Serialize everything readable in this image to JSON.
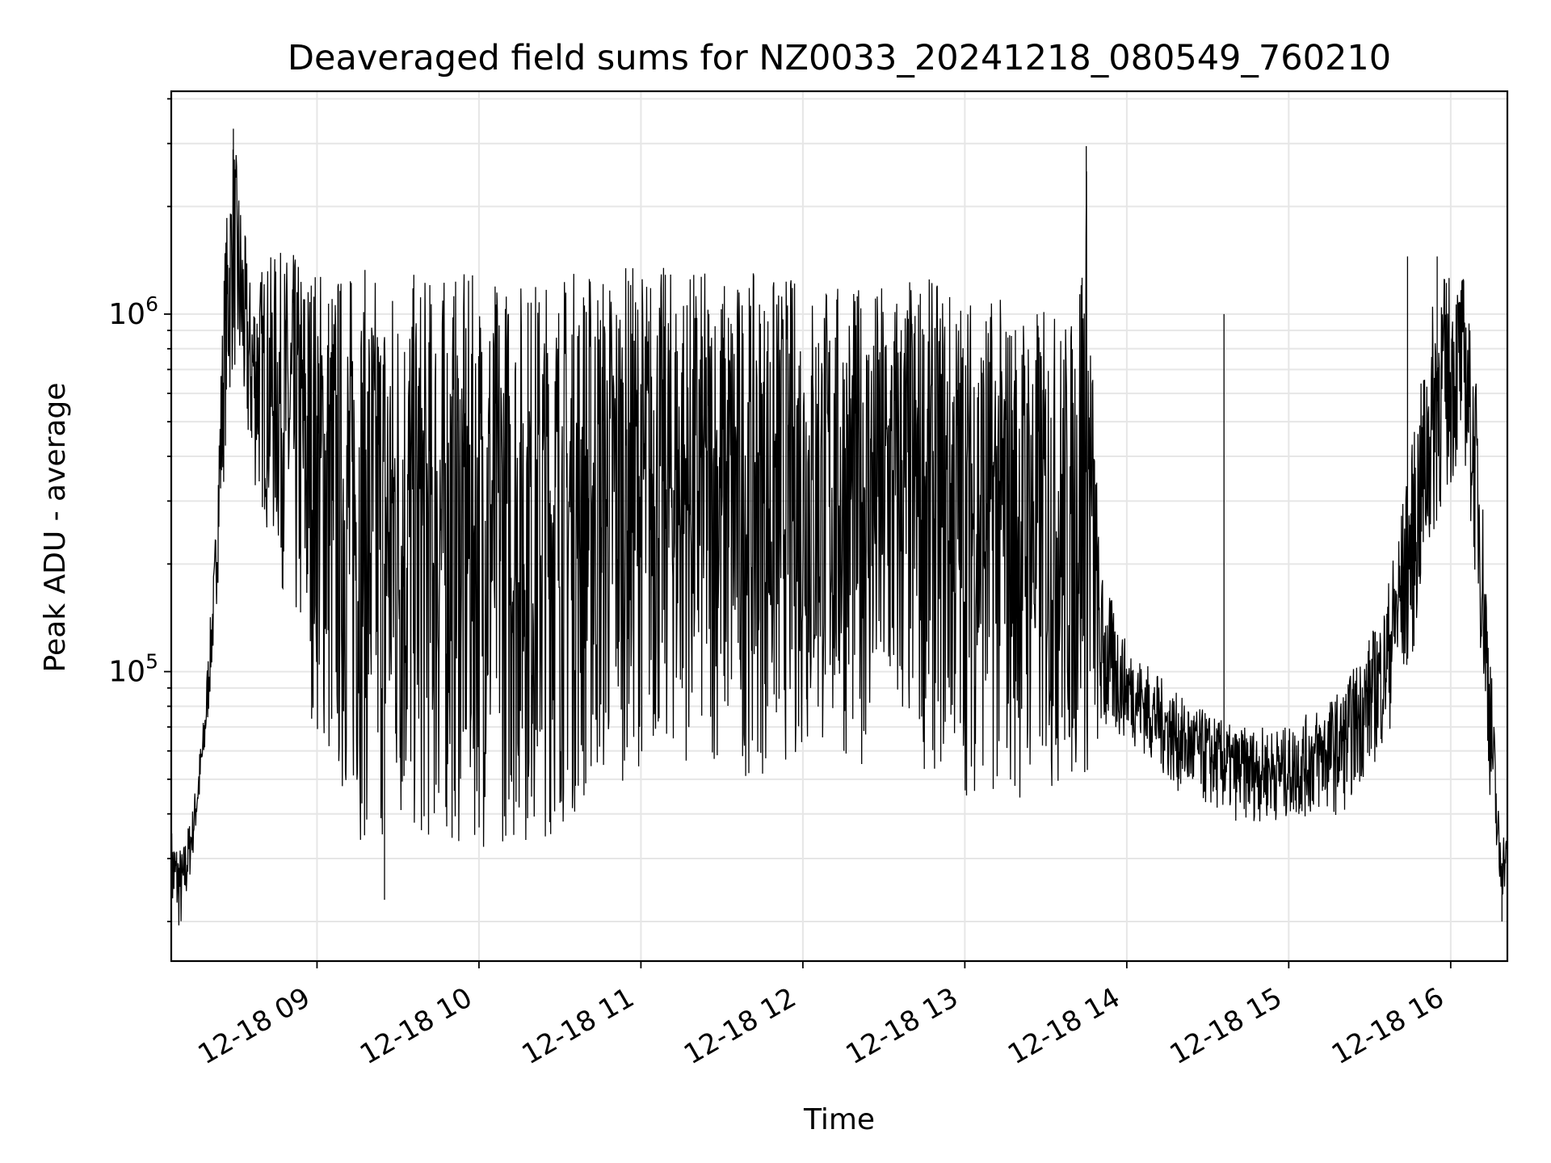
{
  "chart_data": {
    "type": "line",
    "title": "Deaveraged field sums for NZ0033_20241218_080549_760210",
    "xlabel": "Time",
    "ylabel": "Peak ADU - average",
    "yscale": "log",
    "grid": true,
    "xlim": [
      "2024-12-18 08:06",
      "2024-12-18 16:21"
    ],
    "ylim": [
      15500,
      4200000
    ],
    "x_ticks": [
      {
        "value": "2024-12-18 09:00",
        "label": "12-18 09"
      },
      {
        "value": "2024-12-18 10:00",
        "label": "12-18 10"
      },
      {
        "value": "2024-12-18 11:00",
        "label": "12-18 11"
      },
      {
        "value": "2024-12-18 12:00",
        "label": "12-18 12"
      },
      {
        "value": "2024-12-18 13:00",
        "label": "12-18 13"
      },
      {
        "value": "2024-12-18 14:00",
        "label": "12-18 14"
      },
      {
        "value": "2024-12-18 15:00",
        "label": "12-18 15"
      },
      {
        "value": "2024-12-18 16:00",
        "label": "12-18 16"
      }
    ],
    "y_ticks": [
      {
        "value": 100000,
        "base": "10",
        "exp": "5"
      },
      {
        "value": 1000000,
        "base": "10",
        "exp": "6"
      }
    ],
    "series": [
      {
        "color": "#000000",
        "envelope": [
          {
            "x": "2024-12-18 08:06",
            "low": 20000,
            "high": 37000
          },
          {
            "x": "2024-12-18 08:10",
            "low": 18000,
            "high": 32000
          },
          {
            "x": "2024-12-18 08:14",
            "low": 30000,
            "high": 42000
          },
          {
            "x": "2024-12-18 08:18",
            "low": 50000,
            "high": 75000
          },
          {
            "x": "2024-12-18 08:22",
            "low": 120000,
            "high": 210000
          },
          {
            "x": "2024-12-18 08:26",
            "low": 400000,
            "high": 1700000
          },
          {
            "x": "2024-12-18 08:29",
            "low": 700000,
            "high": 3300000
          },
          {
            "x": "2024-12-18 08:35",
            "low": 350000,
            "high": 1300000
          },
          {
            "x": "2024-12-18 08:45",
            "low": 200000,
            "high": 1500000
          },
          {
            "x": "2024-12-18 08:55",
            "low": 90000,
            "high": 1500000
          },
          {
            "x": "2024-12-18 09:05",
            "low": 45000,
            "high": 1400000
          },
          {
            "x": "2024-12-18 09:20",
            "low": 30000,
            "high": 1350000
          },
          {
            "x": "2024-12-18 09:40",
            "low": 30000,
            "high": 1300000
          },
          {
            "x": "2024-12-18 10:00",
            "low": 32000,
            "high": 1300000
          },
          {
            "x": "2024-12-18 10:20",
            "low": 32000,
            "high": 1300000
          },
          {
            "x": "2024-12-18 10:40",
            "low": 40000,
            "high": 1400000
          },
          {
            "x": "2024-12-18 11:00",
            "low": 55000,
            "high": 1400000
          },
          {
            "x": "2024-12-18 11:20",
            "low": 55000,
            "high": 1350000
          },
          {
            "x": "2024-12-18 11:40",
            "low": 50000,
            "high": 1300000
          },
          {
            "x": "2024-12-18 12:00",
            "low": 55000,
            "high": 1300000
          },
          {
            "x": "2024-12-18 12:20",
            "low": 55000,
            "high": 1200000
          },
          {
            "x": "2024-12-18 12:40",
            "low": 55000,
            "high": 1300000
          },
          {
            "x": "2024-12-18 13:00",
            "low": 45000,
            "high": 1200000
          },
          {
            "x": "2024-12-18 13:20",
            "low": 42000,
            "high": 1100000
          },
          {
            "x": "2024-12-18 13:40",
            "low": 45000,
            "high": 1000000
          },
          {
            "x": "2024-12-18 13:45",
            "low": 45000,
            "high": 2900000
          },
          {
            "x": "2024-12-18 13:50",
            "low": 60000,
            "high": 200000
          },
          {
            "x": "2024-12-18 14:00",
            "low": 65000,
            "high": 120000
          },
          {
            "x": "2024-12-18 14:20",
            "low": 45000,
            "high": 85000
          },
          {
            "x": "2024-12-18 14:40",
            "low": 38000,
            "high": 70000
          },
          {
            "x": "2024-12-18 15:00",
            "low": 38000,
            "high": 70000
          },
          {
            "x": "2024-12-18 15:20",
            "low": 40000,
            "high": 90000
          },
          {
            "x": "2024-12-18 15:35",
            "low": 60000,
            "high": 150000
          },
          {
            "x": "2024-12-18 15:45",
            "low": 100000,
            "high": 400000
          },
          {
            "x": "2024-12-18 15:55",
            "low": 250000,
            "high": 1300000
          },
          {
            "x": "2024-12-18 16:05",
            "low": 400000,
            "high": 1300000
          },
          {
            "x": "2024-12-18 16:10",
            "low": 150000,
            "high": 600000
          },
          {
            "x": "2024-12-18 16:14",
            "low": 50000,
            "high": 150000
          },
          {
            "x": "2024-12-18 16:18",
            "low": 22000,
            "high": 38000
          },
          {
            "x": "2024-12-18 16:21",
            "low": 25000,
            "high": 35000
          }
        ],
        "spikes": [
          {
            "x": "2024-12-18 08:29",
            "y": 3300000
          },
          {
            "x": "2024-12-18 09:25",
            "y": 23000
          },
          {
            "x": "2024-12-18 13:45",
            "y": 2950000
          },
          {
            "x": "2024-12-18 14:36",
            "y": 1000000
          },
          {
            "x": "2024-12-18 15:44",
            "y": 1450000
          },
          {
            "x": "2024-12-18 15:55",
            "y": 1450000
          },
          {
            "x": "2024-12-18 16:19",
            "y": 20000
          }
        ]
      }
    ]
  }
}
